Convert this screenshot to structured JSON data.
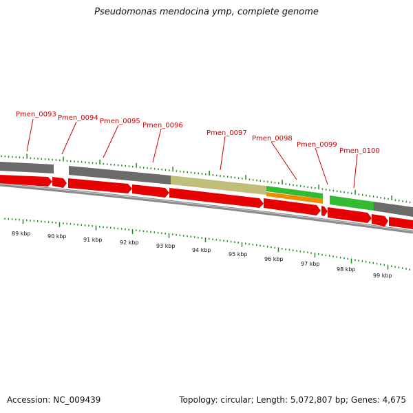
{
  "title": "Pseudomonas mendocina ymp, complete genome",
  "footer": {
    "accession": "Accession: NC_009439",
    "summary": "Topology: circular; Length: 5,072,807 bp; Genes: 4,675"
  },
  "colors": {
    "cds": "#e60000",
    "gray": "#6b6b6b",
    "olive": "#bfbf7a",
    "green": "#33bb33",
    "orange": "#f08c00",
    "backbone": "#8a8a8a",
    "tick": "#1a8a1a",
    "label": "#cc0000"
  },
  "gene_labels": [
    "Pmen_0093",
    "Pmen_0094",
    "Pmen_0095",
    "Pmen_0096",
    "Pmen_0097",
    "Pmen_0098",
    "Pmen_0099",
    "Pmen_0100"
  ],
  "scale_labels": [
    "89 kbp",
    "90 kbp",
    "91 kbp",
    "92 kbp",
    "93 kbp",
    "94 kbp",
    "95 kbp",
    "96 kbp",
    "97 kbp",
    "98 kbp",
    "99 kbp"
  ],
  "feature_tracks": [
    {
      "type": "cds",
      "from": 0,
      "to": 78
    },
    {
      "type": "cds",
      "from": 78,
      "to": 96
    },
    {
      "type": "cds",
      "from": 100,
      "to": 192
    },
    {
      "type": "cds",
      "from": 192,
      "to": 246
    },
    {
      "type": "cds",
      "from": 246,
      "to": 383
    },
    {
      "type": "cds",
      "from": 383,
      "to": 466
    },
    {
      "type": "cds",
      "from": 466,
      "to": 476
    },
    {
      "type": "cds",
      "from": 476,
      "to": 540
    },
    {
      "type": "cds",
      "from": 540,
      "to": 564
    },
    {
      "type": "cds",
      "from": 564,
      "to": 600
    }
  ]
}
